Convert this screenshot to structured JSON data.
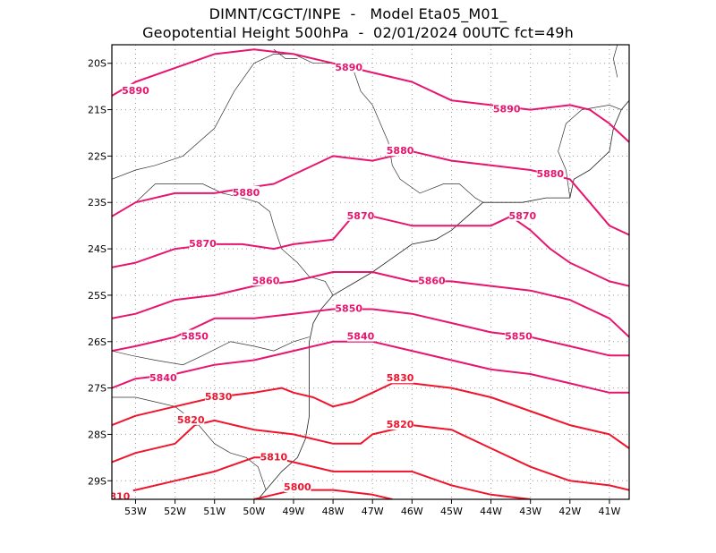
{
  "header": {
    "line1": "DIMNT/CGCT/INPE  -   Model Eta05_M01_",
    "line2": "Geopotential Height 500hPa  -  02/01/2024 00UTC fct=49h"
  },
  "axes": {
    "lon_range": [
      -53.6,
      -40.5
    ],
    "lat_range": [
      -29.4,
      -19.6
    ],
    "x_ticks": [
      {
        "lon": -53,
        "label": "53W"
      },
      {
        "lon": -52,
        "label": "52W"
      },
      {
        "lon": -51,
        "label": "51W"
      },
      {
        "lon": -50,
        "label": "50W"
      },
      {
        "lon": -49,
        "label": "49W"
      },
      {
        "lon": -48,
        "label": "48W"
      },
      {
        "lon": -47,
        "label": "47W"
      },
      {
        "lon": -46,
        "label": "46W"
      },
      {
        "lon": -45,
        "label": "45W"
      },
      {
        "lon": -44,
        "label": "44W"
      },
      {
        "lon": -43,
        "label": "43W"
      },
      {
        "lon": -42,
        "label": "42W"
      },
      {
        "lon": -41,
        "label": "41W"
      }
    ],
    "y_ticks": [
      {
        "lat": -20,
        "label": "20S"
      },
      {
        "lat": -21,
        "label": "21S"
      },
      {
        "lat": -22,
        "label": "22S"
      },
      {
        "lat": -23,
        "label": "23S"
      },
      {
        "lat": -24,
        "label": "24S"
      },
      {
        "lat": -25,
        "label": "25S"
      },
      {
        "lat": -26,
        "label": "26S"
      },
      {
        "lat": -27,
        "label": "27S"
      },
      {
        "lat": -28,
        "label": "28S"
      },
      {
        "lat": -29,
        "label": "29S"
      }
    ],
    "grid": true
  },
  "contours": [
    {
      "value": 5890,
      "color": "#e8156e",
      "points": [
        [
          -53.6,
          -20.7
        ],
        [
          -53.0,
          -20.4
        ],
        [
          -52.0,
          -20.1
        ],
        [
          -51.0,
          -19.8
        ],
        [
          -50.0,
          -19.7
        ],
        [
          -49.0,
          -19.8
        ],
        [
          -48.0,
          -20.0
        ],
        [
          -47.0,
          -20.2
        ],
        [
          -46.0,
          -20.4
        ],
        [
          -45.0,
          -20.8
        ],
        [
          -44.0,
          -20.9
        ],
        [
          -43.0,
          -21.0
        ],
        [
          -42.0,
          -20.9
        ],
        [
          -41.5,
          -21.0
        ],
        [
          -41.0,
          -21.3
        ],
        [
          -40.5,
          -21.7
        ]
      ],
      "labels": [
        {
          "text": "5890",
          "lon": -53.0,
          "lat": -20.6
        },
        {
          "text": "5890",
          "lon": -47.6,
          "lat": -20.1
        },
        {
          "text": "5890",
          "lon": -43.6,
          "lat": -21.0
        }
      ]
    },
    {
      "value": 5880,
      "color": "#e8156e",
      "points": [
        [
          -53.6,
          -23.3
        ],
        [
          -53.0,
          -23.0
        ],
        [
          -52.0,
          -22.8
        ],
        [
          -51.0,
          -22.8
        ],
        [
          -50.3,
          -22.7
        ],
        [
          -49.5,
          -22.6
        ],
        [
          -49.0,
          -22.4
        ],
        [
          -48.0,
          -22.0
        ],
        [
          -47.0,
          -22.1
        ],
        [
          -46.0,
          -21.9
        ],
        [
          -45.0,
          -22.1
        ],
        [
          -44.0,
          -22.2
        ],
        [
          -43.0,
          -22.3
        ],
        [
          -42.0,
          -22.5
        ],
        [
          -41.5,
          -23.0
        ],
        [
          -41.0,
          -23.5
        ],
        [
          -40.5,
          -23.7
        ]
      ],
      "labels": [
        {
          "text": "5880",
          "lon": -50.2,
          "lat": -22.8
        },
        {
          "text": "5880",
          "lon": -46.3,
          "lat": -21.9
        },
        {
          "text": "5880",
          "lon": -42.5,
          "lat": -22.4
        }
      ]
    },
    {
      "value": 5870,
      "color": "#e8156e",
      "points": [
        [
          -53.6,
          -24.4
        ],
        [
          -53.0,
          -24.3
        ],
        [
          -52.0,
          -24.0
        ],
        [
          -51.0,
          -23.9
        ],
        [
          -50.3,
          -23.9
        ],
        [
          -49.5,
          -24.0
        ],
        [
          -49.0,
          -23.9
        ],
        [
          -48.0,
          -23.8
        ],
        [
          -47.5,
          -23.3
        ],
        [
          -47.0,
          -23.3
        ],
        [
          -46.0,
          -23.5
        ],
        [
          -45.0,
          -23.5
        ],
        [
          -44.0,
          -23.5
        ],
        [
          -43.5,
          -23.3
        ],
        [
          -43.0,
          -23.6
        ],
        [
          -42.5,
          -24.0
        ],
        [
          -42.0,
          -24.3
        ],
        [
          -41.0,
          -24.7
        ],
        [
          -40.5,
          -24.8
        ]
      ],
      "labels": [
        {
          "text": "5870",
          "lon": -51.3,
          "lat": -23.9
        },
        {
          "text": "5870",
          "lon": -47.3,
          "lat": -23.3
        },
        {
          "text": "5870",
          "lon": -43.2,
          "lat": -23.3
        }
      ]
    },
    {
      "value": 5860,
      "color": "#e8156e",
      "points": [
        [
          -53.6,
          -25.5
        ],
        [
          -53.0,
          -25.4
        ],
        [
          -52.0,
          -25.1
        ],
        [
          -51.0,
          -25.0
        ],
        [
          -50.0,
          -24.8
        ],
        [
          -49.0,
          -24.7
        ],
        [
          -48.0,
          -24.5
        ],
        [
          -47.0,
          -24.5
        ],
        [
          -46.0,
          -24.7
        ],
        [
          -45.0,
          -24.7
        ],
        [
          -44.0,
          -24.8
        ],
        [
          -43.0,
          -24.9
        ],
        [
          -42.0,
          -25.1
        ],
        [
          -41.0,
          -25.5
        ],
        [
          -40.5,
          -25.9
        ]
      ],
      "labels": [
        {
          "text": "5860",
          "lon": -49.7,
          "lat": -24.7
        },
        {
          "text": "5860",
          "lon": -45.5,
          "lat": -24.7
        }
      ]
    },
    {
      "value": 5850,
      "color": "#e8156e",
      "points": [
        [
          -53.6,
          -26.2
        ],
        [
          -53.0,
          -26.1
        ],
        [
          -52.0,
          -25.9
        ],
        [
          -51.0,
          -25.5
        ],
        [
          -50.0,
          -25.5
        ],
        [
          -49.0,
          -25.4
        ],
        [
          -48.0,
          -25.3
        ],
        [
          -47.0,
          -25.3
        ],
        [
          -46.0,
          -25.4
        ],
        [
          -45.0,
          -25.6
        ],
        [
          -44.0,
          -25.8
        ],
        [
          -43.0,
          -25.9
        ],
        [
          -42.0,
          -26.1
        ],
        [
          -41.0,
          -26.3
        ],
        [
          -40.5,
          -26.3
        ]
      ],
      "labels": [
        {
          "text": "5850",
          "lon": -51.5,
          "lat": -25.9
        },
        {
          "text": "5850",
          "lon": -47.6,
          "lat": -25.3
        },
        {
          "text": "5850",
          "lon": -43.3,
          "lat": -25.9
        }
      ]
    },
    {
      "value": 5840,
      "color": "#e8156e",
      "points": [
        [
          -53.6,
          -27.0
        ],
        [
          -53.0,
          -26.8
        ],
        [
          -52.0,
          -26.7
        ],
        [
          -51.0,
          -26.5
        ],
        [
          -50.0,
          -26.4
        ],
        [
          -49.0,
          -26.2
        ],
        [
          -48.0,
          -26.0
        ],
        [
          -47.0,
          -26.0
        ],
        [
          -46.0,
          -26.2
        ],
        [
          -45.0,
          -26.4
        ],
        [
          -44.0,
          -26.6
        ],
        [
          -43.0,
          -26.7
        ],
        [
          -42.0,
          -26.9
        ],
        [
          -41.0,
          -27.1
        ],
        [
          -40.5,
          -27.1
        ]
      ],
      "labels": [
        {
          "text": "5840",
          "lon": -52.3,
          "lat": -26.8
        },
        {
          "text": "5840",
          "lon": -47.3,
          "lat": -25.9
        }
      ]
    },
    {
      "value": 5830,
      "color": "#f0142c",
      "points": [
        [
          -53.6,
          -27.8
        ],
        [
          -53.0,
          -27.6
        ],
        [
          -52.0,
          -27.4
        ],
        [
          -51.0,
          -27.2
        ],
        [
          -50.0,
          -27.1
        ],
        [
          -49.3,
          -27.0
        ],
        [
          -49.0,
          -27.1
        ],
        [
          -48.5,
          -27.2
        ],
        [
          -48.0,
          -27.4
        ],
        [
          -47.5,
          -27.3
        ],
        [
          -47.0,
          -27.1
        ],
        [
          -46.5,
          -26.9
        ],
        [
          -46.0,
          -26.9
        ],
        [
          -45.0,
          -27.0
        ],
        [
          -44.0,
          -27.2
        ],
        [
          -43.0,
          -27.5
        ],
        [
          -42.0,
          -27.8
        ],
        [
          -41.0,
          -28.0
        ],
        [
          -40.5,
          -28.3
        ]
      ],
      "labels": [
        {
          "text": "5830",
          "lon": -50.9,
          "lat": -27.2
        },
        {
          "text": "5830",
          "lon": -46.3,
          "lat": -26.8
        }
      ]
    },
    {
      "value": 5820,
      "color": "#f0142c",
      "points": [
        [
          -53.6,
          -28.6
        ],
        [
          -53.0,
          -28.4
        ],
        [
          -52.0,
          -28.2
        ],
        [
          -51.5,
          -27.8
        ],
        [
          -51.0,
          -27.7
        ],
        [
          -50.5,
          -27.8
        ],
        [
          -50.0,
          -27.9
        ],
        [
          -49.0,
          -28.0
        ],
        [
          -48.0,
          -28.2
        ],
        [
          -47.3,
          -28.2
        ],
        [
          -47.0,
          -28.0
        ],
        [
          -46.0,
          -27.8
        ],
        [
          -45.0,
          -27.9
        ],
        [
          -44.0,
          -28.3
        ],
        [
          -43.0,
          -28.7
        ],
        [
          -42.0,
          -29.0
        ],
        [
          -41.0,
          -29.1
        ],
        [
          -40.5,
          -29.2
        ]
      ],
      "labels": [
        {
          "text": "5820",
          "lon": -51.6,
          "lat": -27.7
        },
        {
          "text": "5820",
          "lon": -46.3,
          "lat": -27.8
        }
      ]
    },
    {
      "value": 5810,
      "color": "#f0142c",
      "points": [
        [
          -53.6,
          -29.3
        ],
        [
          -53.0,
          -29.2
        ],
        [
          -52.0,
          -29.0
        ],
        [
          -51.0,
          -28.8
        ],
        [
          -50.0,
          -28.5
        ],
        [
          -49.5,
          -28.5
        ],
        [
          -49.0,
          -28.6
        ],
        [
          -48.0,
          -28.8
        ],
        [
          -47.0,
          -28.8
        ],
        [
          -46.0,
          -28.8
        ],
        [
          -45.0,
          -29.1
        ],
        [
          -44.0,
          -29.3
        ],
        [
          -43.0,
          -29.4
        ]
      ],
      "labels": [
        {
          "text": "5810",
          "lon": -49.5,
          "lat": -28.5
        },
        {
          "text": "810",
          "lon": -53.4,
          "lat": -29.35
        }
      ]
    },
    {
      "value": 5800,
      "color": "#f0142c",
      "points": [
        [
          -50.0,
          -29.4
        ],
        [
          -49.5,
          -29.3
        ],
        [
          -49.0,
          -29.2
        ],
        [
          -48.0,
          -29.2
        ],
        [
          -47.0,
          -29.3
        ],
        [
          -46.5,
          -29.4
        ]
      ],
      "labels": [
        {
          "text": "5800",
          "lon": -48.9,
          "lat": -29.15
        }
      ]
    }
  ],
  "coastline": [
    [
      -49.9,
      -29.4
    ],
    [
      -49.7,
      -29.2
    ],
    [
      -49.3,
      -28.8
    ],
    [
      -48.9,
      -28.5
    ],
    [
      -48.7,
      -28.1
    ],
    [
      -48.6,
      -27.6
    ],
    [
      -48.6,
      -27.0
    ],
    [
      -48.6,
      -26.5
    ],
    [
      -48.6,
      -26.0
    ],
    [
      -48.5,
      -25.6
    ],
    [
      -48.3,
      -25.3
    ],
    [
      -48.0,
      -25.0
    ],
    [
      -47.6,
      -24.8
    ],
    [
      -47.0,
      -24.5
    ],
    [
      -46.5,
      -24.2
    ],
    [
      -46.0,
      -23.9
    ],
    [
      -45.4,
      -23.8
    ],
    [
      -45.0,
      -23.6
    ],
    [
      -44.6,
      -23.3
    ],
    [
      -44.2,
      -23.0
    ],
    [
      -43.7,
      -23.0
    ],
    [
      -43.2,
      -23.0
    ],
    [
      -42.6,
      -22.9
    ],
    [
      -42.0,
      -22.9
    ],
    [
      -41.9,
      -22.5
    ],
    [
      -41.5,
      -22.3
    ],
    [
      -41.0,
      -21.9
    ],
    [
      -40.9,
      -21.4
    ],
    [
      -40.7,
      -21.0
    ],
    [
      -40.5,
      -20.8
    ]
  ],
  "borders": [
    [
      [
        -53.6,
        -22.5
      ],
      [
        -53.0,
        -22.3
      ],
      [
        -52.5,
        -22.2
      ],
      [
        -51.8,
        -22.0
      ],
      [
        -51.0,
        -21.4
      ],
      [
        -50.5,
        -20.6
      ],
      [
        -50.0,
        -20.0
      ],
      [
        -49.5,
        -19.8
      ],
      [
        -49.0,
        -19.8
      ],
      [
        -48.5,
        -20.0
      ],
      [
        -48.0,
        -20.0
      ],
      [
        -47.5,
        -20.1
      ],
      [
        -47.3,
        -20.6
      ],
      [
        -47.0,
        -20.9
      ],
      [
        -46.8,
        -21.3
      ],
      [
        -46.6,
        -21.7
      ],
      [
        -46.5,
        -22.2
      ],
      [
        -46.3,
        -22.5
      ],
      [
        -45.8,
        -22.8
      ],
      [
        -45.2,
        -22.6
      ],
      [
        -44.8,
        -22.6
      ],
      [
        -44.4,
        -22.9
      ],
      [
        -44.2,
        -23.0
      ]
    ],
    [
      [
        -53.0,
        -23.0
      ],
      [
        -52.5,
        -22.6
      ],
      [
        -52.0,
        -22.6
      ],
      [
        -51.3,
        -22.6
      ],
      [
        -50.8,
        -22.8
      ],
      [
        -50.3,
        -22.9
      ],
      [
        -49.9,
        -23.0
      ],
      [
        -49.6,
        -23.2
      ],
      [
        -49.5,
        -23.5
      ],
      [
        -49.3,
        -24.0
      ],
      [
        -48.9,
        -24.3
      ],
      [
        -48.6,
        -24.6
      ],
      [
        -48.2,
        -24.7
      ],
      [
        -48.0,
        -25.0
      ]
    ],
    [
      [
        -53.6,
        -26.2
      ],
      [
        -53.1,
        -26.3
      ],
      [
        -52.5,
        -26.4
      ],
      [
        -51.8,
        -26.5
      ],
      [
        -51.3,
        -26.3
      ],
      [
        -50.6,
        -26.0
      ],
      [
        -50.0,
        -26.1
      ],
      [
        -49.5,
        -26.2
      ],
      [
        -49.0,
        -26.0
      ],
      [
        -48.6,
        -25.9
      ]
    ],
    [
      [
        -53.6,
        -27.2
      ],
      [
        -53.0,
        -27.2
      ],
      [
        -52.5,
        -27.3
      ],
      [
        -52.0,
        -27.4
      ],
      [
        -51.4,
        -27.8
      ],
      [
        -51.0,
        -28.2
      ],
      [
        -50.6,
        -28.4
      ],
      [
        -50.2,
        -28.5
      ],
      [
        -49.9,
        -28.7
      ],
      [
        -49.7,
        -29.2
      ]
    ],
    [
      [
        -42.0,
        -22.9
      ],
      [
        -42.1,
        -22.3
      ],
      [
        -42.3,
        -21.9
      ],
      [
        -42.1,
        -21.3
      ],
      [
        -41.7,
        -21.0
      ],
      [
        -41.0,
        -20.9
      ],
      [
        -40.7,
        -21.0
      ]
    ],
    [
      [
        -40.8,
        -20.3
      ],
      [
        -40.9,
        -19.9
      ],
      [
        -40.8,
        -19.6
      ]
    ],
    [
      [
        -49.5,
        -19.7
      ],
      [
        -49.2,
        -19.9
      ],
      [
        -48.9,
        -19.9
      ]
    ]
  ]
}
